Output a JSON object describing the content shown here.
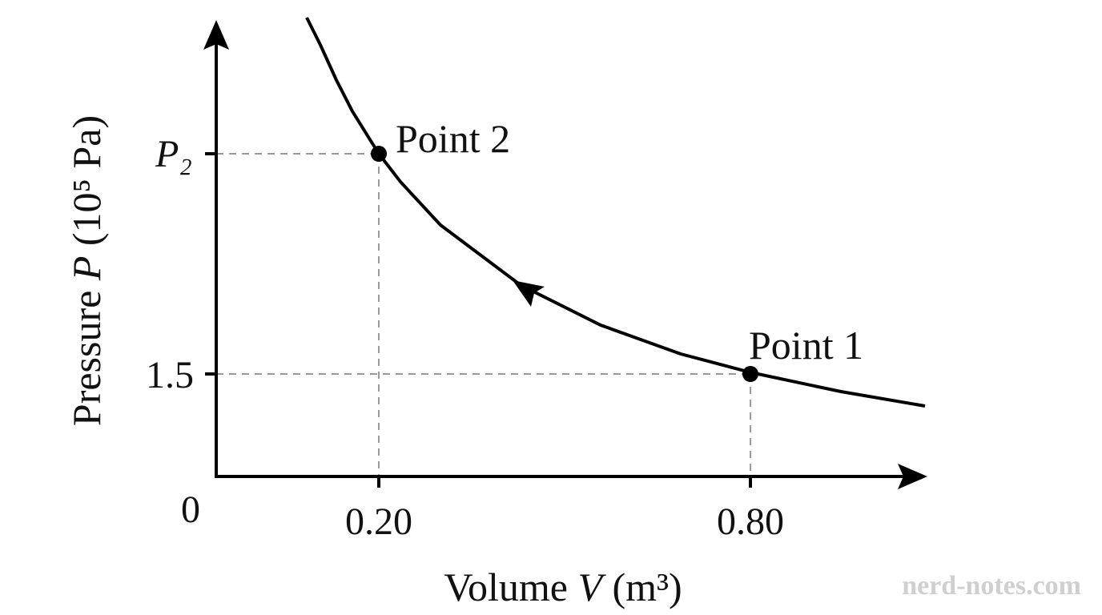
{
  "y_axis": {
    "label": {
      "before": "Pressure ",
      "symbol": "P",
      "after": " (10⁵ Pa)"
    },
    "ticks": [
      "P₂",
      "1.5"
    ]
  },
  "x_axis": {
    "label": {
      "before": "Volume ",
      "symbol": "V",
      "after": " (m³)"
    },
    "ticks": [
      "0",
      "0.20",
      "0.80"
    ]
  },
  "points": [
    {
      "label": "Point 1"
    },
    {
      "label": "Point 2"
    }
  ],
  "watermark": "nerd-notes.com"
}
